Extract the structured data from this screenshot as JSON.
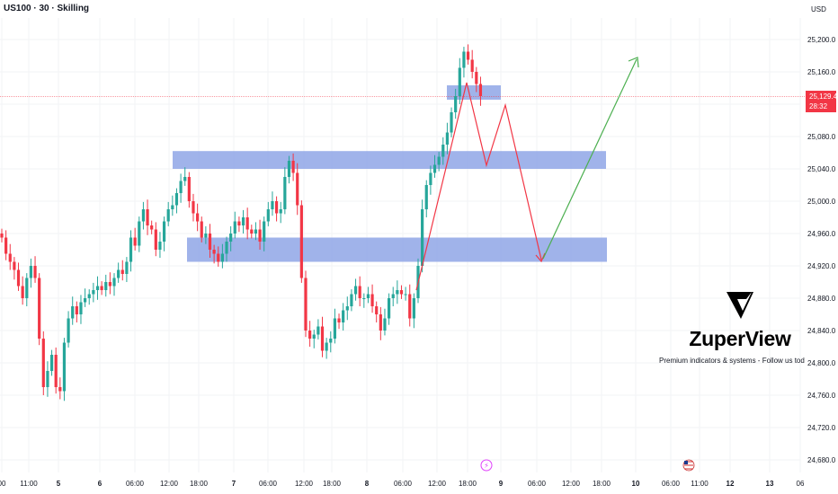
{
  "header": {
    "symbol_title": "US100 · 30 · Skilling",
    "currency": "USD"
  },
  "price_marker": {
    "price": "25,129.4",
    "countdown": "28:32"
  },
  "watermark": {
    "brand": "ZuperView",
    "tagline": "Premium indicators & systems - Follow us tod"
  },
  "colors": {
    "bull": "#26a69a",
    "bear": "#f23645",
    "zone": "#8fa6e6",
    "path_red": "#f23645",
    "path_green": "#4caf50"
  },
  "event_icons": [
    {
      "name": "flash-event-icon",
      "glyph": "⚡",
      "x_label": "9"
    },
    {
      "name": "us-flag-event-icon",
      "glyph": "us-flag",
      "x_label": "11:00"
    }
  ],
  "chart_data": {
    "type": "candlestick",
    "symbol": "US100",
    "timeframe": "30",
    "broker": "Skilling",
    "ylim": [
      24660,
      25240
    ],
    "y_ticks": [
      "25,200.0",
      "25,160.0",
      "25,120.0",
      "25,080.0",
      "25,040.0",
      "25,000.0",
      "24,960.0",
      "24,920.0",
      "24,880.0",
      "24,840.0",
      "24,800.0",
      "24,760.0",
      "24,720.0",
      "24,680.0"
    ],
    "y_tick_values": [
      25200,
      25160,
      25120,
      25080,
      25040,
      25000,
      24960,
      24920,
      24880,
      24840,
      24800,
      24760,
      24720,
      24680
    ],
    "x_ticks": [
      "00",
      "11:00",
      "5",
      "6",
      "06:00",
      "12:00",
      "18:00",
      "7",
      "06:00",
      "12:00",
      "18:00",
      "8",
      "06:00",
      "12:00",
      "18:00",
      "9",
      "06:00",
      "12:00",
      "18:00",
      "10",
      "06:00",
      "11:00",
      "12",
      "13",
      "06"
    ],
    "x_tick_bold": [
      "5",
      "6",
      "7",
      "8",
      "9",
      "10",
      "12",
      "13"
    ],
    "last_price": 25129.4,
    "candles_close": [
      24955,
      24935,
      24925,
      24915,
      24895,
      24880,
      24905,
      24920,
      24905,
      24830,
      24770,
      24790,
      24810,
      24770,
      24765,
      24825,
      24855,
      24870,
      24860,
      24875,
      24880,
      24885,
      24890,
      24895,
      24890,
      24900,
      24895,
      24905,
      24915,
      24910,
      24925,
      24955,
      24945,
      24975,
      24990,
      24970,
      24965,
      24940,
      24950,
      24975,
      24990,
      24995,
      25010,
      25025,
      25030,
      25000,
      24985,
      24975,
      24955,
      24960,
      24940,
      24935,
      24925,
      24935,
      24950,
      24960,
      24975,
      24970,
      24980,
      24965,
      24960,
      24965,
      24950,
      24975,
      24990,
      25000,
      24985,
      24990,
      25030,
      25050,
      25035,
      24995,
      24905,
      24840,
      24830,
      24835,
      24845,
      24815,
      24825,
      24830,
      24855,
      24850,
      24865,
      24870,
      24885,
      24895,
      24880,
      24880,
      24885,
      24870,
      24860,
      24840,
      24855,
      24880,
      24885,
      24890,
      24885,
      24885,
      24855,
      24880,
      24920,
      24990,
      25020,
      25035,
      25045,
      25055,
      25070,
      25085,
      25110,
      25130,
      25165,
      25185,
      25175,
      25160,
      25145,
      25130
    ],
    "zones": [
      {
        "from": 25062,
        "to": 25040,
        "x_start": "12:00",
        "x_end": "06:00"
      },
      {
        "from": 24955,
        "to": 24925,
        "x_start": "18:00",
        "x_end": "06:00"
      }
    ],
    "projected_path_red": [
      {
        "x": "18:00",
        "price": 24895
      },
      {
        "x": "18:00",
        "price": 25145
      },
      {
        "x": "9",
        "price": 25045
      },
      {
        "x": "9",
        "price": 25120
      },
      {
        "x": "06:00",
        "price": 24925
      }
    ],
    "projected_path_green": [
      {
        "x": "06:00",
        "price": 24925
      },
      {
        "x": "10",
        "price": 25185
      }
    ]
  }
}
